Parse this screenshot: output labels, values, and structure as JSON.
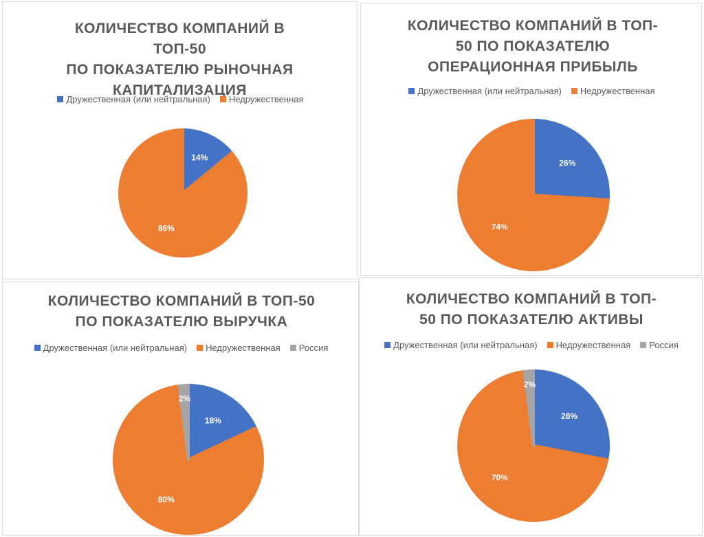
{
  "chart_data": [
    {
      "type": "pie",
      "title": "КОЛИЧЕСТВО КОМПАНИЙ В ТОП-50 ПО ПОКАЗАТЕЛЮ РЫНОЧНАЯ КАПИТАЛИЗАЦИЯ",
      "title_lines": [
        "КОЛИЧЕСТВО КОМПАНИЙ В ТОП-50",
        "ПО ПОКАЗАТЕЛЮ РЫНОЧНАЯ",
        "КАПИТАЛИЗАЦИЯ"
      ],
      "legend_position": "top",
      "slices": [
        {
          "name": "Дружественная (или нейтральная)",
          "value": 14,
          "label": "14%",
          "color": "#4472C4"
        },
        {
          "name": "Недружественная",
          "value": 86,
          "label": "86%",
          "color": "#ED7D31"
        }
      ]
    },
    {
      "type": "pie",
      "title": "КОЛИЧЕСТВО КОМПАНИЙ В ТОП-50 ПО ПОКАЗАТЕЛЮ ОПЕРАЦИОННАЯ ПРИБЫЛЬ",
      "title_lines": [
        "КОЛИЧЕСТВО КОМПАНИЙ В ТОП-",
        "50 ПО ПОКАЗАТЕЛЮ",
        "ОПЕРАЦИОННАЯ ПРИБЫЛЬ"
      ],
      "legend_position": "top",
      "slices": [
        {
          "name": "Дружественная (или нейтральная)",
          "value": 26,
          "label": "26%",
          "color": "#4472C4"
        },
        {
          "name": "Недружественная",
          "value": 74,
          "label": "74%",
          "color": "#ED7D31"
        }
      ]
    },
    {
      "type": "pie",
      "title": "КОЛИЧЕСТВО КОМПАНИЙ В ТОП-50 ПО ПОКАЗАТЕЛЮ ВЫРУЧКА",
      "title_lines": [
        "КОЛИЧЕСТВО КОМПАНИЙ В ТОП-50",
        "ПО ПОКАЗАТЕЛЮ ВЫРУЧКА"
      ],
      "legend_position": "top",
      "slices": [
        {
          "name": "Дружественная (или нейтральная)",
          "value": 18,
          "label": "18%",
          "color": "#4472C4"
        },
        {
          "name": "Недружественная",
          "value": 80,
          "label": "80%",
          "color": "#ED7D31"
        },
        {
          "name": "Россия",
          "value": 2,
          "label": "2%",
          "color": "#A5A5A5"
        }
      ]
    },
    {
      "type": "pie",
      "title": "КОЛИЧЕСТВО КОМПАНИЙ В ТОП-50 ПО ПОКАЗАТЕЛЮ АКТИВЫ",
      "title_lines": [
        "КОЛИЧЕСТВО КОМПАНИЙ В ТОП-",
        "50 ПО ПОКАЗАТЕЛЮ АКТИВЫ"
      ],
      "legend_position": "top",
      "slices": [
        {
          "name": "Дружественная (или нейтральная)",
          "value": 28,
          "label": "28%",
          "color": "#4472C4"
        },
        {
          "name": "Недружественная",
          "value": 70,
          "label": "70%",
          "color": "#ED7D31"
        },
        {
          "name": "Россия",
          "value": 2,
          "label": "2%",
          "color": "#A5A5A5"
        }
      ]
    }
  ]
}
